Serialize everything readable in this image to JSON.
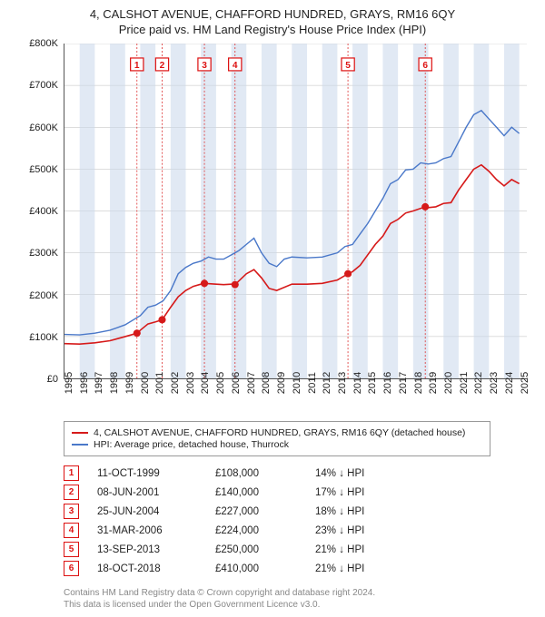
{
  "title_line1": "4, CALSHOT AVENUE, CHAFFORD HUNDRED, GRAYS, RM16 6QY",
  "title_line2": "Price paid vs. HM Land Registry's House Price Index (HPI)",
  "chart": {
    "type": "line",
    "x_min": 1995,
    "x_max": 2025.5,
    "y_min": 0,
    "y_max": 800000,
    "y_ticks": [
      0,
      100000,
      200000,
      300000,
      400000,
      500000,
      600000,
      700000,
      800000
    ],
    "y_tick_labels": [
      "£0",
      "£100K",
      "£200K",
      "£300K",
      "£400K",
      "£500K",
      "£600K",
      "£700K",
      "£800K"
    ],
    "x_ticks": [
      1995,
      1996,
      1997,
      1998,
      1999,
      2000,
      2001,
      2002,
      2003,
      2004,
      2005,
      2006,
      2007,
      2008,
      2009,
      2010,
      2011,
      2012,
      2013,
      2014,
      2015,
      2016,
      2017,
      2018,
      2019,
      2020,
      2021,
      2022,
      2023,
      2024,
      2025
    ],
    "grid_color": "#bbbbbb",
    "band_color": "rgba(200,215,235,0.55)",
    "marker_border": "#d11a1a",
    "series": [
      {
        "name": "address",
        "label": "4, CALSHOT AVENUE, CHAFFORD HUNDRED, GRAYS, RM16 6QY (detached house)",
        "color": "#d61a1a",
        "line_width": 1.6,
        "points": [
          [
            1995,
            83000
          ],
          [
            1996,
            82000
          ],
          [
            1997,
            85000
          ],
          [
            1998,
            90000
          ],
          [
            1999,
            100000
          ],
          [
            1999.78,
            108000
          ],
          [
            2000,
            115000
          ],
          [
            2000.5,
            130000
          ],
          [
            2001,
            135000
          ],
          [
            2001.44,
            140000
          ],
          [
            2002,
            170000
          ],
          [
            2002.5,
            195000
          ],
          [
            2003,
            210000
          ],
          [
            2003.5,
            220000
          ],
          [
            2004,
            225000
          ],
          [
            2004.23,
            227000
          ],
          [
            2005,
            225000
          ],
          [
            2005.5,
            224000
          ],
          [
            2006,
            225000
          ],
          [
            2006.25,
            224000
          ],
          [
            2007,
            250000
          ],
          [
            2007.5,
            260000
          ],
          [
            2008,
            240000
          ],
          [
            2008.5,
            215000
          ],
          [
            2009,
            210000
          ],
          [
            2010,
            225000
          ],
          [
            2011,
            225000
          ],
          [
            2012,
            227000
          ],
          [
            2013,
            235000
          ],
          [
            2013.7,
            250000
          ],
          [
            2014,
            255000
          ],
          [
            2014.5,
            270000
          ],
          [
            2015,
            295000
          ],
          [
            2015.5,
            320000
          ],
          [
            2016,
            340000
          ],
          [
            2016.5,
            370000
          ],
          [
            2017,
            380000
          ],
          [
            2017.5,
            395000
          ],
          [
            2018,
            400000
          ],
          [
            2018.8,
            410000
          ],
          [
            2019,
            408000
          ],
          [
            2019.5,
            410000
          ],
          [
            2020,
            418000
          ],
          [
            2020.5,
            420000
          ],
          [
            2021,
            450000
          ],
          [
            2021.5,
            475000
          ],
          [
            2022,
            500000
          ],
          [
            2022.5,
            510000
          ],
          [
            2023,
            495000
          ],
          [
            2023.5,
            475000
          ],
          [
            2024,
            460000
          ],
          [
            2024.5,
            475000
          ],
          [
            2025,
            465000
          ]
        ]
      },
      {
        "name": "hpi",
        "label": "HPI: Average price, detached house, Thurrock",
        "color": "#4a78c9",
        "line_width": 1.4,
        "points": [
          [
            1995,
            105000
          ],
          [
            1996,
            104000
          ],
          [
            1997,
            108000
          ],
          [
            1998,
            115000
          ],
          [
            1999,
            128000
          ],
          [
            2000,
            150000
          ],
          [
            2000.5,
            170000
          ],
          [
            2001,
            175000
          ],
          [
            2001.5,
            185000
          ],
          [
            2002,
            210000
          ],
          [
            2002.5,
            250000
          ],
          [
            2003,
            265000
          ],
          [
            2003.5,
            275000
          ],
          [
            2004,
            280000
          ],
          [
            2004.5,
            290000
          ],
          [
            2005,
            285000
          ],
          [
            2005.5,
            285000
          ],
          [
            2006,
            295000
          ],
          [
            2006.5,
            305000
          ],
          [
            2007,
            320000
          ],
          [
            2007.5,
            335000
          ],
          [
            2008,
            300000
          ],
          [
            2008.5,
            275000
          ],
          [
            2009,
            267000
          ],
          [
            2009.5,
            285000
          ],
          [
            2010,
            290000
          ],
          [
            2011,
            288000
          ],
          [
            2012,
            290000
          ],
          [
            2013,
            300000
          ],
          [
            2013.5,
            315000
          ],
          [
            2014,
            320000
          ],
          [
            2014.5,
            345000
          ],
          [
            2015,
            370000
          ],
          [
            2015.5,
            400000
          ],
          [
            2016,
            430000
          ],
          [
            2016.5,
            465000
          ],
          [
            2017,
            475000
          ],
          [
            2017.5,
            498000
          ],
          [
            2018,
            500000
          ],
          [
            2018.5,
            515000
          ],
          [
            2019,
            512000
          ],
          [
            2019.5,
            515000
          ],
          [
            2020,
            525000
          ],
          [
            2020.5,
            530000
          ],
          [
            2021,
            565000
          ],
          [
            2021.5,
            600000
          ],
          [
            2022,
            630000
          ],
          [
            2022.5,
            640000
          ],
          [
            2023,
            620000
          ],
          [
            2023.5,
            600000
          ],
          [
            2024,
            580000
          ],
          [
            2024.5,
            600000
          ],
          [
            2025,
            585000
          ]
        ]
      }
    ],
    "sale_markers": [
      {
        "n": 1,
        "x": 1999.78,
        "y": 108000
      },
      {
        "n": 2,
        "x": 2001.44,
        "y": 140000
      },
      {
        "n": 3,
        "x": 2004.23,
        "y": 227000
      },
      {
        "n": 4,
        "x": 2006.25,
        "y": 224000
      },
      {
        "n": 5,
        "x": 2013.7,
        "y": 250000
      },
      {
        "n": 6,
        "x": 2018.8,
        "y": 410000
      }
    ]
  },
  "legend": {
    "items": [
      {
        "color": "#d61a1a",
        "label": "4, CALSHOT AVENUE, CHAFFORD HUNDRED, GRAYS, RM16 6QY (detached house)"
      },
      {
        "color": "#4a78c9",
        "label": "HPI: Average price, detached house, Thurrock"
      }
    ]
  },
  "sales_table": [
    {
      "n": "1",
      "date": "11-OCT-1999",
      "price": "£108,000",
      "delta": "14% ↓ HPI"
    },
    {
      "n": "2",
      "date": "08-JUN-2001",
      "price": "£140,000",
      "delta": "17% ↓ HPI"
    },
    {
      "n": "3",
      "date": "25-JUN-2004",
      "price": "£227,000",
      "delta": "18% ↓ HPI"
    },
    {
      "n": "4",
      "date": "31-MAR-2006",
      "price": "£224,000",
      "delta": "23% ↓ HPI"
    },
    {
      "n": "5",
      "date": "13-SEP-2013",
      "price": "£250,000",
      "delta": "21% ↓ HPI"
    },
    {
      "n": "6",
      "date": "18-OCT-2018",
      "price": "£410,000",
      "delta": "21% ↓ HPI"
    }
  ],
  "footer_line1": "Contains HM Land Registry data © Crown copyright and database right 2024.",
  "footer_line2": "This data is licensed under the Open Government Licence v3.0."
}
